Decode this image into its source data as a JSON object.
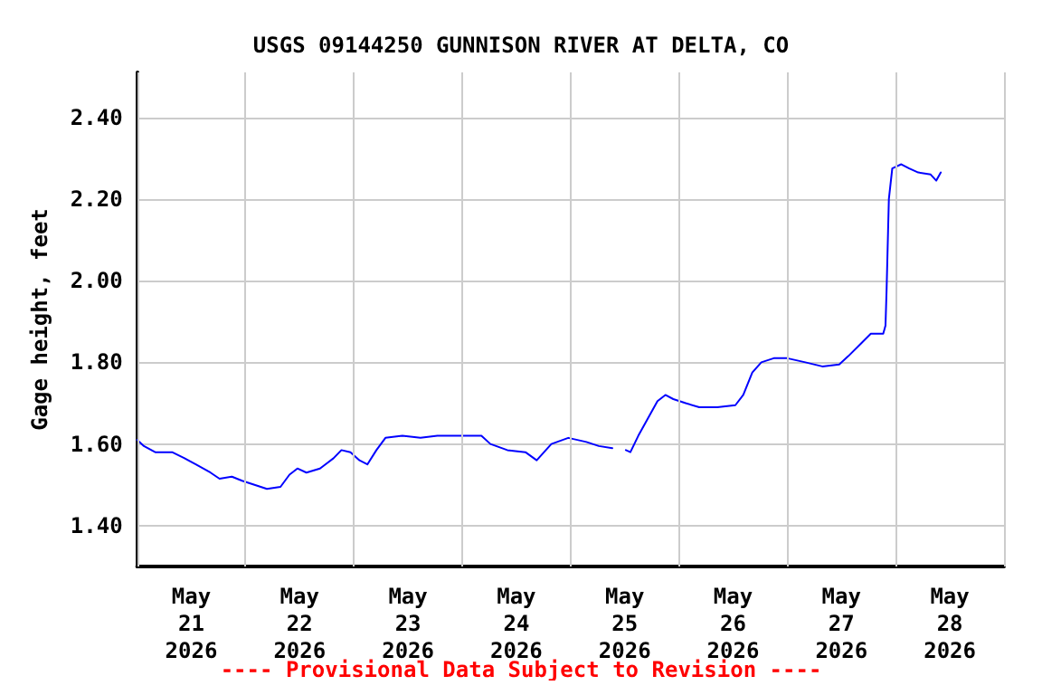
{
  "chart_data": {
    "type": "line",
    "title": "USGS 09144250 GUNNISON RIVER AT DELTA, CO",
    "ylabel": "Gage height, feet",
    "annotations": [
      "---- Provisional Data Subject to Revision ----"
    ],
    "series": [
      {
        "color": "#0000ff",
        "x": [
          "2026-05-21T00:00",
          "2026-05-21T01:30",
          "2026-05-21T04:00",
          "2026-05-21T07:45",
          "2026-05-21T10:30",
          "2026-05-21T13:00",
          "2026-05-21T16:15",
          "2026-05-21T18:15",
          "2026-05-21T21:00",
          "2026-05-21T23:15",
          "2026-05-22T02:00",
          "2026-05-22T04:45",
          "2026-05-22T07:45",
          "2026-05-22T09:45",
          "2026-05-22T11:30",
          "2026-05-22T13:30",
          "2026-05-22T16:30",
          "2026-05-22T19:30",
          "2026-05-22T21:15",
          "2026-05-22T23:15",
          "2026-05-23T01:15",
          "2026-05-23T03:00",
          "2026-05-23T05:00",
          "2026-05-23T07:00",
          "2026-05-23T10:45",
          "2026-05-23T14:45",
          "2026-05-23T18:30",
          "2026-05-24T00:30",
          "2026-05-24T04:15",
          "2026-05-24T06:15",
          "2026-05-24T10:00",
          "2026-05-24T14:00",
          "2026-05-24T16:30",
          "2026-05-24T19:45",
          "2026-05-24T23:30",
          "2026-05-25T03:30",
          "2026-05-25T06:15",
          "2026-05-25T09:15",
          "2026-05-25T10:45",
          "2026-05-25T12:15",
          "2026-05-25T13:15",
          "2026-05-25T15:00",
          "2026-05-25T17:00",
          "2026-05-25T19:15",
          "2026-05-25T21:00",
          "2026-05-25T22:45",
          "2026-05-26T01:30",
          "2026-05-26T04:30",
          "2026-05-26T08:30",
          "2026-05-26T12:30",
          "2026-05-26T14:15",
          "2026-05-26T16:15",
          "2026-05-26T18:15",
          "2026-05-26T21:00",
          "2026-05-27T00:00",
          "2026-05-27T04:00",
          "2026-05-27T07:45",
          "2026-05-27T11:30",
          "2026-05-27T13:30",
          "2026-05-27T16:15",
          "2026-05-27T18:30",
          "2026-05-27T21:15",
          "2026-05-27T21:45",
          "2026-05-27T22:00",
          "2026-05-27T22:30",
          "2026-05-27T23:15",
          "2026-05-28T01:15",
          "2026-05-28T03:00",
          "2026-05-28T05:00",
          "2026-05-28T07:45",
          "2026-05-28T09:00",
          "2026-05-28T10:00"
        ],
        "values": [
          1.61,
          1.595,
          1.58,
          1.58,
          1.565,
          1.55,
          1.53,
          1.515,
          1.52,
          1.51,
          1.5,
          1.49,
          1.495,
          1.525,
          1.54,
          1.53,
          1.54,
          1.565,
          1.585,
          1.58,
          1.56,
          1.55,
          1.585,
          1.615,
          1.62,
          1.615,
          1.62,
          1.62,
          1.62,
          1.6,
          1.585,
          1.58,
          1.56,
          1.6,
          1.615,
          1.605,
          1.595,
          1.59,
          null,
          1.585,
          1.58,
          1.62,
          1.66,
          1.705,
          1.72,
          1.71,
          1.7,
          1.69,
          1.69,
          1.695,
          1.72,
          1.775,
          1.8,
          1.81,
          1.81,
          1.8,
          1.79,
          1.795,
          1.815,
          1.845,
          1.87,
          1.87,
          1.89,
          1.98,
          2.2,
          2.275,
          2.285,
          2.275,
          2.265,
          2.26,
          2.245,
          2.265
        ]
      }
    ],
    "xlim": [
      "2026-05-21T00:00",
      "2026-05-29T00:00"
    ],
    "xticks": [
      {
        "value": "2026-05-21T00:00",
        "label": null
      },
      {
        "value": "2026-05-21T12:00",
        "label": "May\n21\n2026"
      },
      {
        "value": "2026-05-22T00:00",
        "label": null
      },
      {
        "value": "2026-05-22T12:00",
        "label": "May\n22\n2026"
      },
      {
        "value": "2026-05-23T00:00",
        "label": null
      },
      {
        "value": "2026-05-23T12:00",
        "label": "May\n23\n2026"
      },
      {
        "value": "2026-05-24T00:00",
        "label": null
      },
      {
        "value": "2026-05-24T12:00",
        "label": "May\n24\n2026"
      },
      {
        "value": "2026-05-25T00:00",
        "label": null
      },
      {
        "value": "2026-05-25T12:00",
        "label": "May\n25\n2026"
      },
      {
        "value": "2026-05-26T00:00",
        "label": null
      },
      {
        "value": "2026-05-26T12:00",
        "label": "May\n26\n2026"
      },
      {
        "value": "2026-05-27T00:00",
        "label": null
      },
      {
        "value": "2026-05-27T12:00",
        "label": "May\n27\n2026"
      },
      {
        "value": "2026-05-28T00:00",
        "label": null
      },
      {
        "value": "2026-05-28T12:00",
        "label": "May\n28\n2026"
      },
      {
        "value": "2026-05-29T00:00",
        "label": null
      }
    ],
    "ylim": [
      1.3,
      2.51
    ],
    "yticks": [
      {
        "value": 1.4,
        "label": "1.40"
      },
      {
        "value": 1.6,
        "label": "1.60"
      },
      {
        "value": 1.8,
        "label": "1.80"
      },
      {
        "value": 2.0,
        "label": "2.00"
      },
      {
        "value": 2.2,
        "label": "2.20"
      },
      {
        "value": 2.4,
        "label": "2.40"
      }
    ],
    "grid": true,
    "marker": "none",
    "line_style": "solid"
  }
}
